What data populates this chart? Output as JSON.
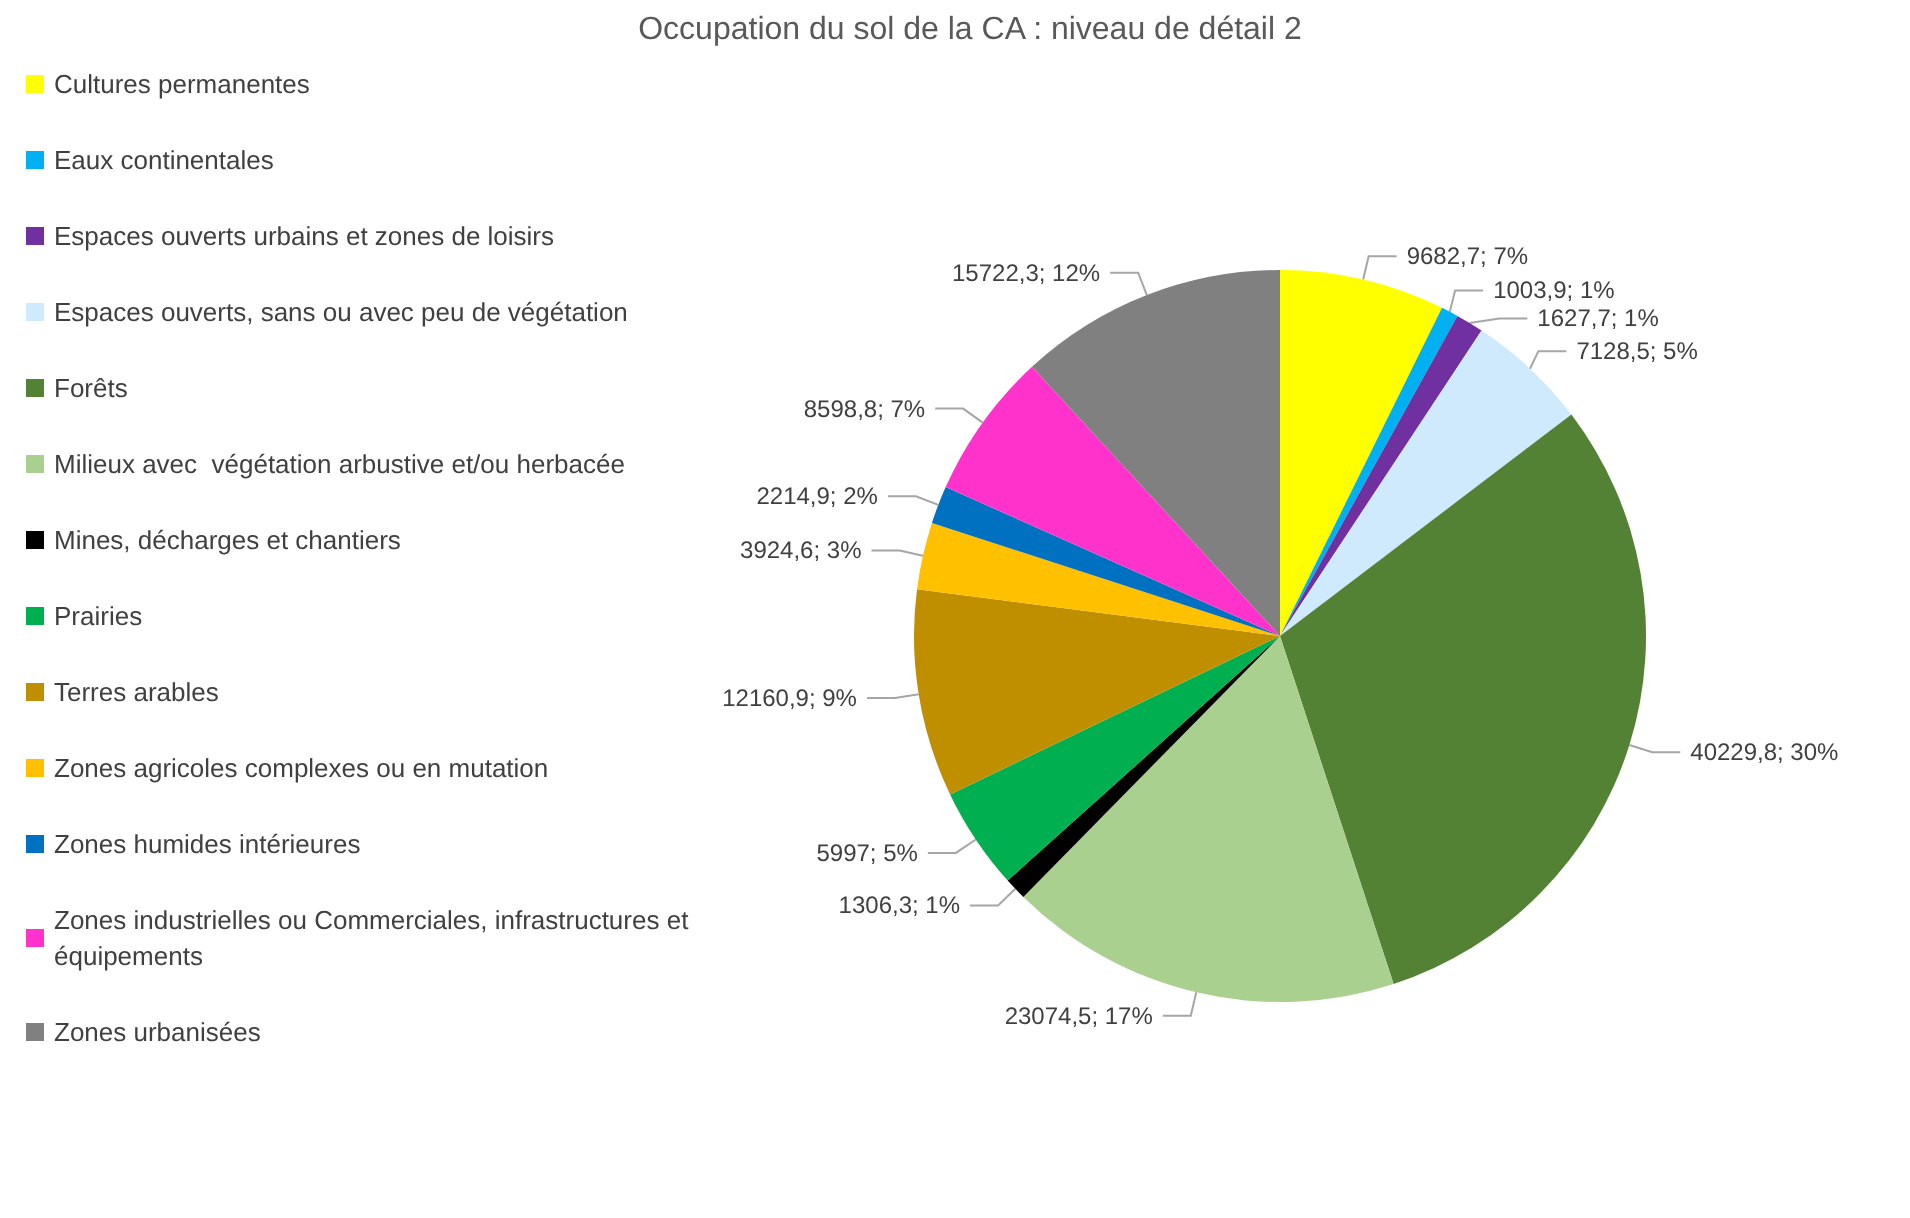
{
  "chart_data": {
    "type": "pie",
    "title": "Occupation du sol de la CA : niveau de détail 2",
    "categories": [
      "Cultures permanentes",
      "Eaux continentales",
      "Espaces ouverts urbains et zones de loisirs",
      "Espaces ouverts, sans ou avec peu de végétation",
      "Forêts",
      "Milieux avec  végétation arbustive et/ou herbacée",
      "Mines, décharges et chantiers",
      "Prairies",
      "Terres arables",
      "Zones agricoles complexes ou en mutation",
      "Zones humides intérieures",
      "Zones industrielles ou Commerciales, infrastructures et équipements",
      "Zones urbanisées"
    ],
    "values": [
      9682.7,
      1003.9,
      1627.7,
      7128.5,
      40229.8,
      23074.5,
      1306.3,
      5997,
      12160.9,
      3924.6,
      2214.9,
      8598.8,
      15722.3
    ],
    "value_labels": [
      "9682,7; 7%",
      "1003,9; 1%",
      "1627,7; 1%",
      "7128,5; 5%",
      "40229,8; 30%",
      "23074,5; 17%",
      "1306,3; 1%",
      "5997; 5%",
      "12160,9; 9%",
      "3924,6; 3%",
      "2214,9; 2%",
      "8598,8; 7%",
      "15722,3; 12%"
    ],
    "colors": [
      "#ffff00",
      "#00b0f0",
      "#7030a0",
      "#cfeafc",
      "#548235",
      "#a9d08e",
      "#000000",
      "#00b050",
      "#bf8f00",
      "#ffc000",
      "#0070c0",
      "#ff33cc",
      "#808080"
    ],
    "legend": "left"
  }
}
